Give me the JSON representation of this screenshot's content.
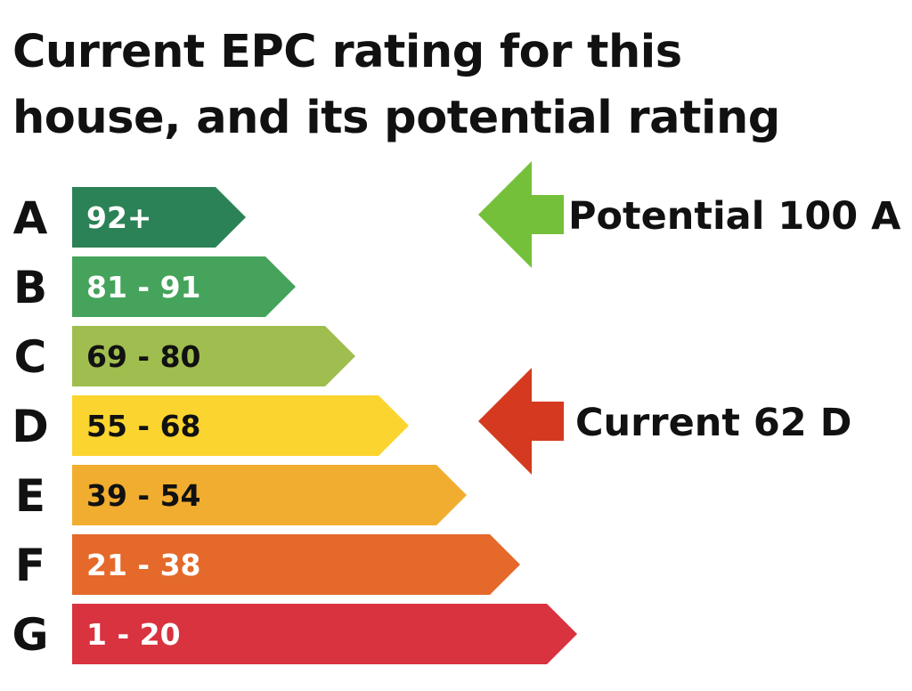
{
  "title_lines": [
    "Current EPC rating for this",
    "house, and its potential rating"
  ],
  "chart_data": {
    "type": "bar",
    "categories": [
      "A",
      "B",
      "C",
      "D",
      "E",
      "F",
      "G"
    ],
    "ranges": [
      "92+",
      "81 - 91",
      "69 - 80",
      "55 - 68",
      "39 - 54",
      "21 - 38",
      "1 - 20"
    ],
    "colors": [
      "#2b8256",
      "#45a35b",
      "#a0bd4f",
      "#fcd42f",
      "#f1ad2f",
      "#e4692a",
      "#d8333f"
    ],
    "range_text_colors": [
      "#ffffff",
      "#ffffff",
      "#111111",
      "#111111",
      "#111111",
      "#ffffff",
      "#ffffff"
    ],
    "potential": {
      "label": "Potential 100 A",
      "score": 100,
      "band": "A",
      "color": "#74c03a"
    },
    "current": {
      "label": "Current 62 D",
      "score": 62,
      "band": "D",
      "color": "#d5391f"
    }
  }
}
